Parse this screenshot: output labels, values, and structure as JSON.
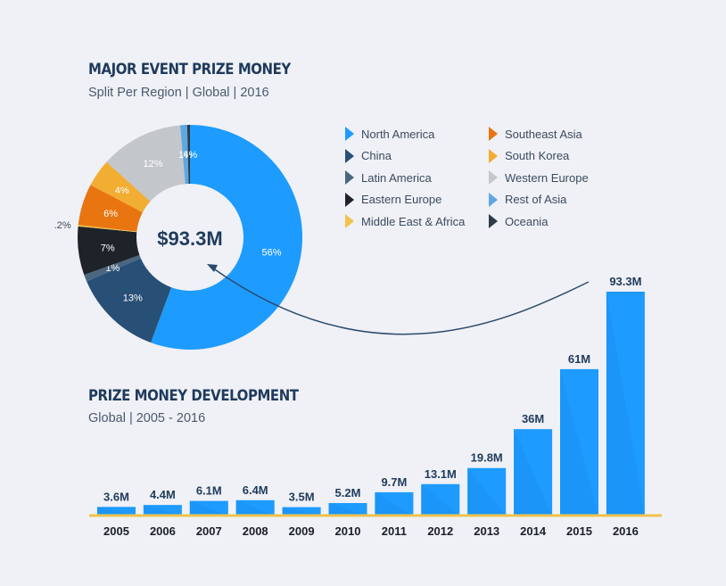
{
  "donut": {
    "title": "MAJOR EVENT PRIZE MONEY",
    "subtitle": "Split Per Region  |  Global  | 2016",
    "center_label": "$93.3M"
  },
  "bars": {
    "title": "PRIZE MONEY DEVELOPMENT",
    "subtitle": "Global  | 2005 - 2016"
  },
  "colors": {
    "accent": "#1e9bff",
    "title": "#1f3a5c",
    "axis": "#f2c24e",
    "background": "#eff1f6"
  },
  "chart_data": [
    {
      "type": "pie",
      "variant": "donut",
      "center_label": "$93.3M",
      "slices": [
        {
          "name": "North America",
          "value": 56,
          "label": "56%",
          "color": "#1e9bff"
        },
        {
          "name": "China",
          "value": 13,
          "label": "13%",
          "color": "#284f76"
        },
        {
          "name": "Latin America",
          "value": 1,
          "label": "1%",
          "color": "#4a6680"
        },
        {
          "name": "Eastern Europe",
          "value": 7,
          "label": "7%",
          "color": "#1d2329"
        },
        {
          "name": "Middle East & Africa",
          "value": 0.2,
          "label": ".2%",
          "color": "#f2c24e"
        },
        {
          "name": "Southeast Asia",
          "value": 6,
          "label": "6%",
          "color": "#e8750f"
        },
        {
          "name": "South Korea",
          "value": 4,
          "label": "4%",
          "color": "#f2ad33"
        },
        {
          "name": "Western Europe",
          "value": 12,
          "label": "12%",
          "color": "#c3c6cb"
        },
        {
          "name": "Rest of Asia",
          "value": 1,
          "label": "1%",
          "color": "#5ea7e0"
        },
        {
          "name": "Oceania",
          "value": 0.4,
          "label": ".4%",
          "color": "#2e3b48"
        }
      ],
      "legend_placement": "right"
    },
    {
      "type": "bar",
      "categories": [
        "2005",
        "2006",
        "2007",
        "2008",
        "2009",
        "2010",
        "2011",
        "2012",
        "2013",
        "2014",
        "2015",
        "2016"
      ],
      "values": [
        3.6,
        4.4,
        6.1,
        6.4,
        3.5,
        5.2,
        9.7,
        13.1,
        19.8,
        36,
        61,
        93.3
      ],
      "value_labels": [
        "3.6M",
        "4.4M",
        "6.1M",
        "6.4M",
        "3.5M",
        "5.2M",
        "9.7M",
        "13.1M",
        "19.8M",
        "36M",
        "61M",
        "93.3M"
      ],
      "ylim": [
        0,
        93.3
      ],
      "grid": false,
      "color": "#1e9bff"
    }
  ]
}
